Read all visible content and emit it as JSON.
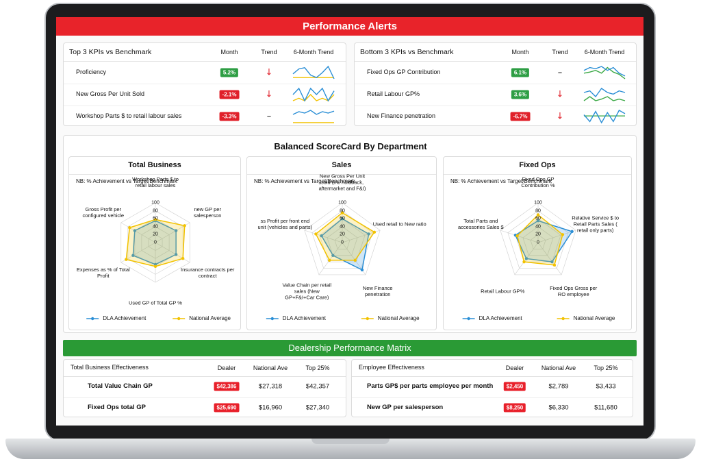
{
  "header": {
    "title": "Performance Alerts"
  },
  "kpi_panels": [
    {
      "title": "Top 3 KPIs vs Benchmark",
      "columns": [
        "Month",
        "Trend",
        "6-Month Trend"
      ],
      "line_color": "#2b8fd6",
      "benchmark_color": "#f2c200",
      "rows": [
        {
          "name": "Proficiency",
          "month": "5.2%",
          "month_color": "#2e9e44",
          "trend": "↓",
          "trend_color": "#e0202a",
          "trend_line": [
            55,
            75,
            80,
            50,
            40,
            60,
            85,
            35
          ],
          "benchmark_line": [
            40,
            40,
            40,
            40,
            40,
            40,
            40,
            40
          ]
        },
        {
          "name": "New Gross Per Unit Sold",
          "month": "-2.1%",
          "month_color": "#e0202a",
          "trend": "↓",
          "trend_color": "#e0202a",
          "trend_line": [
            55,
            60,
            50,
            60,
            55,
            60,
            50,
            58
          ],
          "benchmark_line": [
            50,
            52,
            50,
            55,
            50,
            52,
            50,
            55
          ]
        },
        {
          "name": "Workshop Parts $ to retail labour sales",
          "month": "-3.3%",
          "month_color": "#e0202a",
          "trend": "–",
          "trend_color": "#111111",
          "trend_line": [
            60,
            70,
            65,
            75,
            60,
            70,
            65,
            72
          ],
          "benchmark_line": [
            30,
            30,
            30,
            30,
            30,
            30,
            30,
            30
          ]
        }
      ]
    },
    {
      "title": "Bottom 3 KPIs vs Benchmark",
      "columns": [
        "Month",
        "Trend",
        "6-Month Trend"
      ],
      "line_color": "#2b8fd6",
      "benchmark_color": "#3aa845",
      "rows": [
        {
          "name": "Fixed Ops GP Contribution",
          "month": "6.1%",
          "month_color": "#2e9e44",
          "trend": "–",
          "trend_color": "#111111",
          "trend_line": [
            65,
            70,
            68,
            72,
            65,
            70,
            60,
            55
          ],
          "benchmark_line": [
            60,
            62,
            65,
            60,
            70,
            62,
            58,
            50
          ]
        },
        {
          "name": "Retail Labour GP%",
          "month": "3.6%",
          "month_color": "#2e9e44",
          "trend": "↓",
          "trend_color": "#e0202a",
          "trend_line": [
            60,
            62,
            55,
            65,
            60,
            58,
            62,
            60
          ],
          "benchmark_line": [
            50,
            55,
            50,
            52,
            55,
            50,
            52,
            50
          ]
        },
        {
          "name": "New Finance penetration",
          "month": "-6.7%",
          "month_color": "#e0202a",
          "trend": "↓",
          "trend_color": "#e0202a",
          "trend_line": [
            60,
            30,
            75,
            25,
            70,
            30,
            80,
            65
          ],
          "benchmark_line": [
            55,
            55,
            55,
            55,
            55,
            55,
            55,
            55
          ]
        }
      ]
    }
  ],
  "scorecard": {
    "title": "Balanced ScoreCard By Department",
    "charts": [
      {
        "type": "radar",
        "title": "Total Business",
        "note": "NB: % Achievement vs Target/Benchmark",
        "axes": [
          "Workshop Parts $ to retail labour sales",
          "new GP per salesperson",
          "Insurance contracts per contract",
          "Used GP of Total GP %",
          "Expenses as % of Total Profit",
          "Gross Profit per configured vehicle"
        ],
        "rlim": [
          0,
          100
        ],
        "rticks": [
          0,
          20,
          40,
          60,
          80,
          100
        ],
        "series": [
          {
            "name": "DLA Achievement",
            "color": "#2b8fd6",
            "values": [
              55,
              60,
              60,
              55,
              65,
              60
            ]
          },
          {
            "name": "National Average",
            "color": "#f2c200",
            "values": [
              58,
              85,
              80,
              60,
              85,
              75
            ]
          }
        ]
      },
      {
        "type": "radar",
        "title": "Sales",
        "note": "NB: % Achievement vs Target/Benchmark",
        "axes": [
          "New Gross Per Unit sold (inc holdback, aftermarket and F&I)",
          "Used retail to New ratio",
          "New Finance penetration",
          "Value Chain per retail sales (New GP+F&I+Car Care)",
          "ss Profit per front end unit (vehicles and parts)"
        ],
        "rlim": [
          0,
          100
        ],
        "rticks": [
          0,
          20,
          40,
          60,
          80,
          100
        ],
        "series": [
          {
            "name": "DLA Achievement",
            "color": "#2b8fd6",
            "values": [
              60,
              70,
              85,
              40,
              55
            ]
          },
          {
            "name": "National Average",
            "color": "#f2c200",
            "values": [
              75,
              85,
              55,
              55,
              70
            ]
          }
        ]
      },
      {
        "type": "radar",
        "title": "Fixed Ops",
        "note": "NB: % Achievement vs Target/Benchmark",
        "axes": [
          "Fixed Ops GP Contribution %",
          "Relative Service $ to Retail Parts Sales ( retail only parts)",
          "Fixed Ops Gross per RO employee",
          "Retail Labour GP%",
          "Total Parts and accessories Sales $"
        ],
        "rlim": [
          0,
          100
        ],
        "rticks": [
          0,
          20,
          40,
          60,
          80,
          100
        ],
        "series": [
          {
            "name": "DLA Achievement",
            "color": "#2b8fd6",
            "values": [
              55,
              90,
              60,
              50,
              60
            ]
          },
          {
            "name": "National Average",
            "color": "#f2c200",
            "values": [
              70,
              65,
              70,
              60,
              55
            ]
          }
        ]
      }
    ]
  },
  "matrix": {
    "title": "Dealership Performance Matrix",
    "dealer_color": "#e8202a",
    "tables": [
      {
        "columns": [
          "Total Business Effectiveness",
          "Dealer",
          "National Ave",
          "Top 25%"
        ],
        "rows": [
          [
            "Total Value Chain GP",
            "$42,386",
            "$27,318",
            "$42,357"
          ],
          [
            "Fixed Ops total GP",
            "$25,690",
            "$16,960",
            "$27,340"
          ]
        ]
      },
      {
        "columns": [
          "Employee Effectiveness",
          "Dealer",
          "National Ave",
          "Top 25%"
        ],
        "rows": [
          [
            "Parts GP$ per parts employee per month",
            "$2,450",
            "$2,789",
            "$3,433"
          ],
          [
            "New GP per salesperson",
            "$8,250",
            "$6,330",
            "$11,680"
          ]
        ]
      }
    ]
  }
}
